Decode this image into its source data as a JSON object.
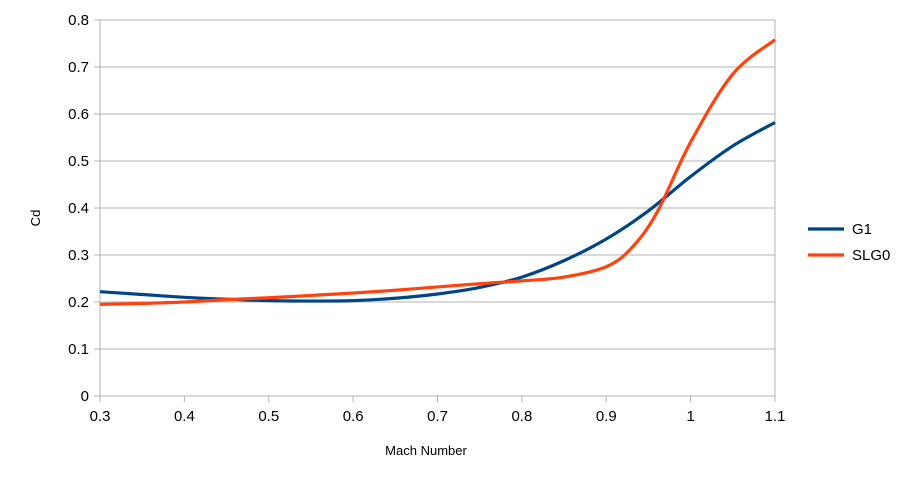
{
  "chart_data": {
    "type": "line",
    "xlabel": "Mach Number",
    "ylabel": "Cd",
    "xlim": [
      0.3,
      1.1
    ],
    "ylim": [
      0,
      0.8
    ],
    "xticks": [
      "0.3",
      "0.4",
      "0.5",
      "0.6",
      "0.7",
      "0.8",
      "0.9",
      "1",
      "1.1"
    ],
    "yticks": [
      "0",
      "0.1",
      "0.2",
      "0.3",
      "0.4",
      "0.5",
      "0.6",
      "0.7",
      "0.8"
    ],
    "grid": "horizontal",
    "legend_position": "right",
    "series": [
      {
        "name": "G1",
        "color": "#004586",
        "x": [
          0.3,
          0.35,
          0.4,
          0.45,
          0.5,
          0.55,
          0.6,
          0.65,
          0.7,
          0.75,
          0.8,
          0.85,
          0.9,
          0.95,
          1.0,
          1.05,
          1.1
        ],
        "y": [
          0.222,
          0.216,
          0.21,
          0.206,
          0.203,
          0.202,
          0.203,
          0.208,
          0.217,
          0.231,
          0.253,
          0.288,
          0.334,
          0.394,
          0.467,
          0.532,
          0.582
        ]
      },
      {
        "name": "SLG0",
        "color": "#ff420e",
        "x": [
          0.3,
          0.35,
          0.4,
          0.45,
          0.5,
          0.55,
          0.6,
          0.65,
          0.7,
          0.75,
          0.8,
          0.85,
          0.9,
          0.93,
          0.96,
          1.0,
          1.05,
          1.1
        ],
        "y": [
          0.195,
          0.197,
          0.2,
          0.205,
          0.209,
          0.214,
          0.219,
          0.225,
          0.232,
          0.239,
          0.245,
          0.253,
          0.275,
          0.315,
          0.39,
          0.54,
          0.685,
          0.758
        ]
      }
    ]
  }
}
